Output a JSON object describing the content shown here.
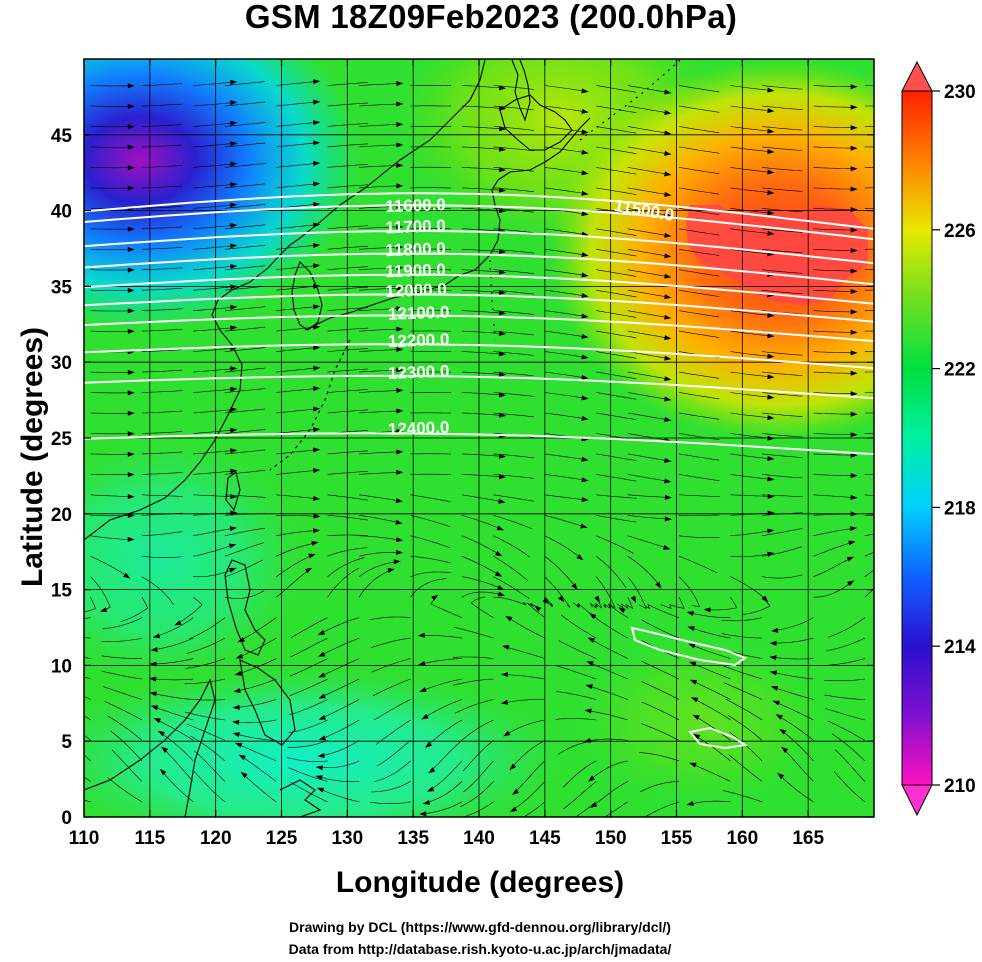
{
  "title": "GSM 18Z09Feb2023 (200.0hPa)",
  "xlabel": "Longitude (degrees)",
  "ylabel": "Latitude  (degrees)",
  "credits": [
    "Drawing by DCL (https://www.gfd-dennou.org/library/dcl/)",
    "Data from http://database.rish.kyoto-u.ac.jp/arch/jmadata/"
  ],
  "chart_data": {
    "type": "heatmap",
    "xlim": [
      110,
      170
    ],
    "ylim": [
      0,
      50
    ],
    "x_ticks": [
      "110",
      "115",
      "120",
      "125",
      "130",
      "135",
      "140",
      "145",
      "150",
      "155",
      "160",
      "165"
    ],
    "y_ticks": [
      "0",
      "5",
      "10",
      "15",
      "20",
      "25",
      "30",
      "35",
      "40",
      "45"
    ],
    "grid": true,
    "colorbar": {
      "range": [
        210,
        230
      ],
      "ticks": [
        "210",
        "214",
        "218",
        "222",
        "226",
        "230"
      ],
      "colors": [
        "#ff10c0",
        "#2a10d0",
        "#00d0ff",
        "#00e040",
        "#e8e800",
        "#ff2000"
      ]
    },
    "contours": [
      {
        "label": "11500.0",
        "lat": 40.5
      },
      {
        "label": "11600.0",
        "lat": 39.8
      },
      {
        "label": "11700.0",
        "lat": 38.2
      },
      {
        "label": "11800.0",
        "lat": 36.8
      },
      {
        "label": "11900.0",
        "lat": 35.5
      },
      {
        "label": "12000.0",
        "lat": 34.3
      },
      {
        "label": "12100.0",
        "lat": 33.0
      },
      {
        "label": "12200.0",
        "lat": 31.2
      },
      {
        "label": "12300.0",
        "lat": 29.2
      },
      {
        "label": "12400.0",
        "lat": 25.5
      }
    ],
    "contour_label_positions": [
      {
        "label": "11500.0",
        "lon": 150.2,
        "lat": 40.0
      },
      {
        "label": "11600.0",
        "lon": 132.9,
        "lat": 39.9
      },
      {
        "label": "11700.0",
        "lon": 132.9,
        "lat": 38.5
      },
      {
        "label": "11800.0",
        "lon": 132.9,
        "lat": 37.0
      },
      {
        "label": "11900.0",
        "lon": 132.9,
        "lat": 35.6
      },
      {
        "label": "12000.0",
        "lon": 132.9,
        "lat": 34.3
      },
      {
        "label": "12100.0",
        "lon": 133.1,
        "lat": 32.8
      },
      {
        "label": "12200.0",
        "lon": 133.1,
        "lat": 31.0
      },
      {
        "label": "12300.0",
        "lon": 133.1,
        "lat": 28.9
      },
      {
        "label": "12400.0",
        "lon": 133.1,
        "lat": 25.2
      }
    ]
  }
}
